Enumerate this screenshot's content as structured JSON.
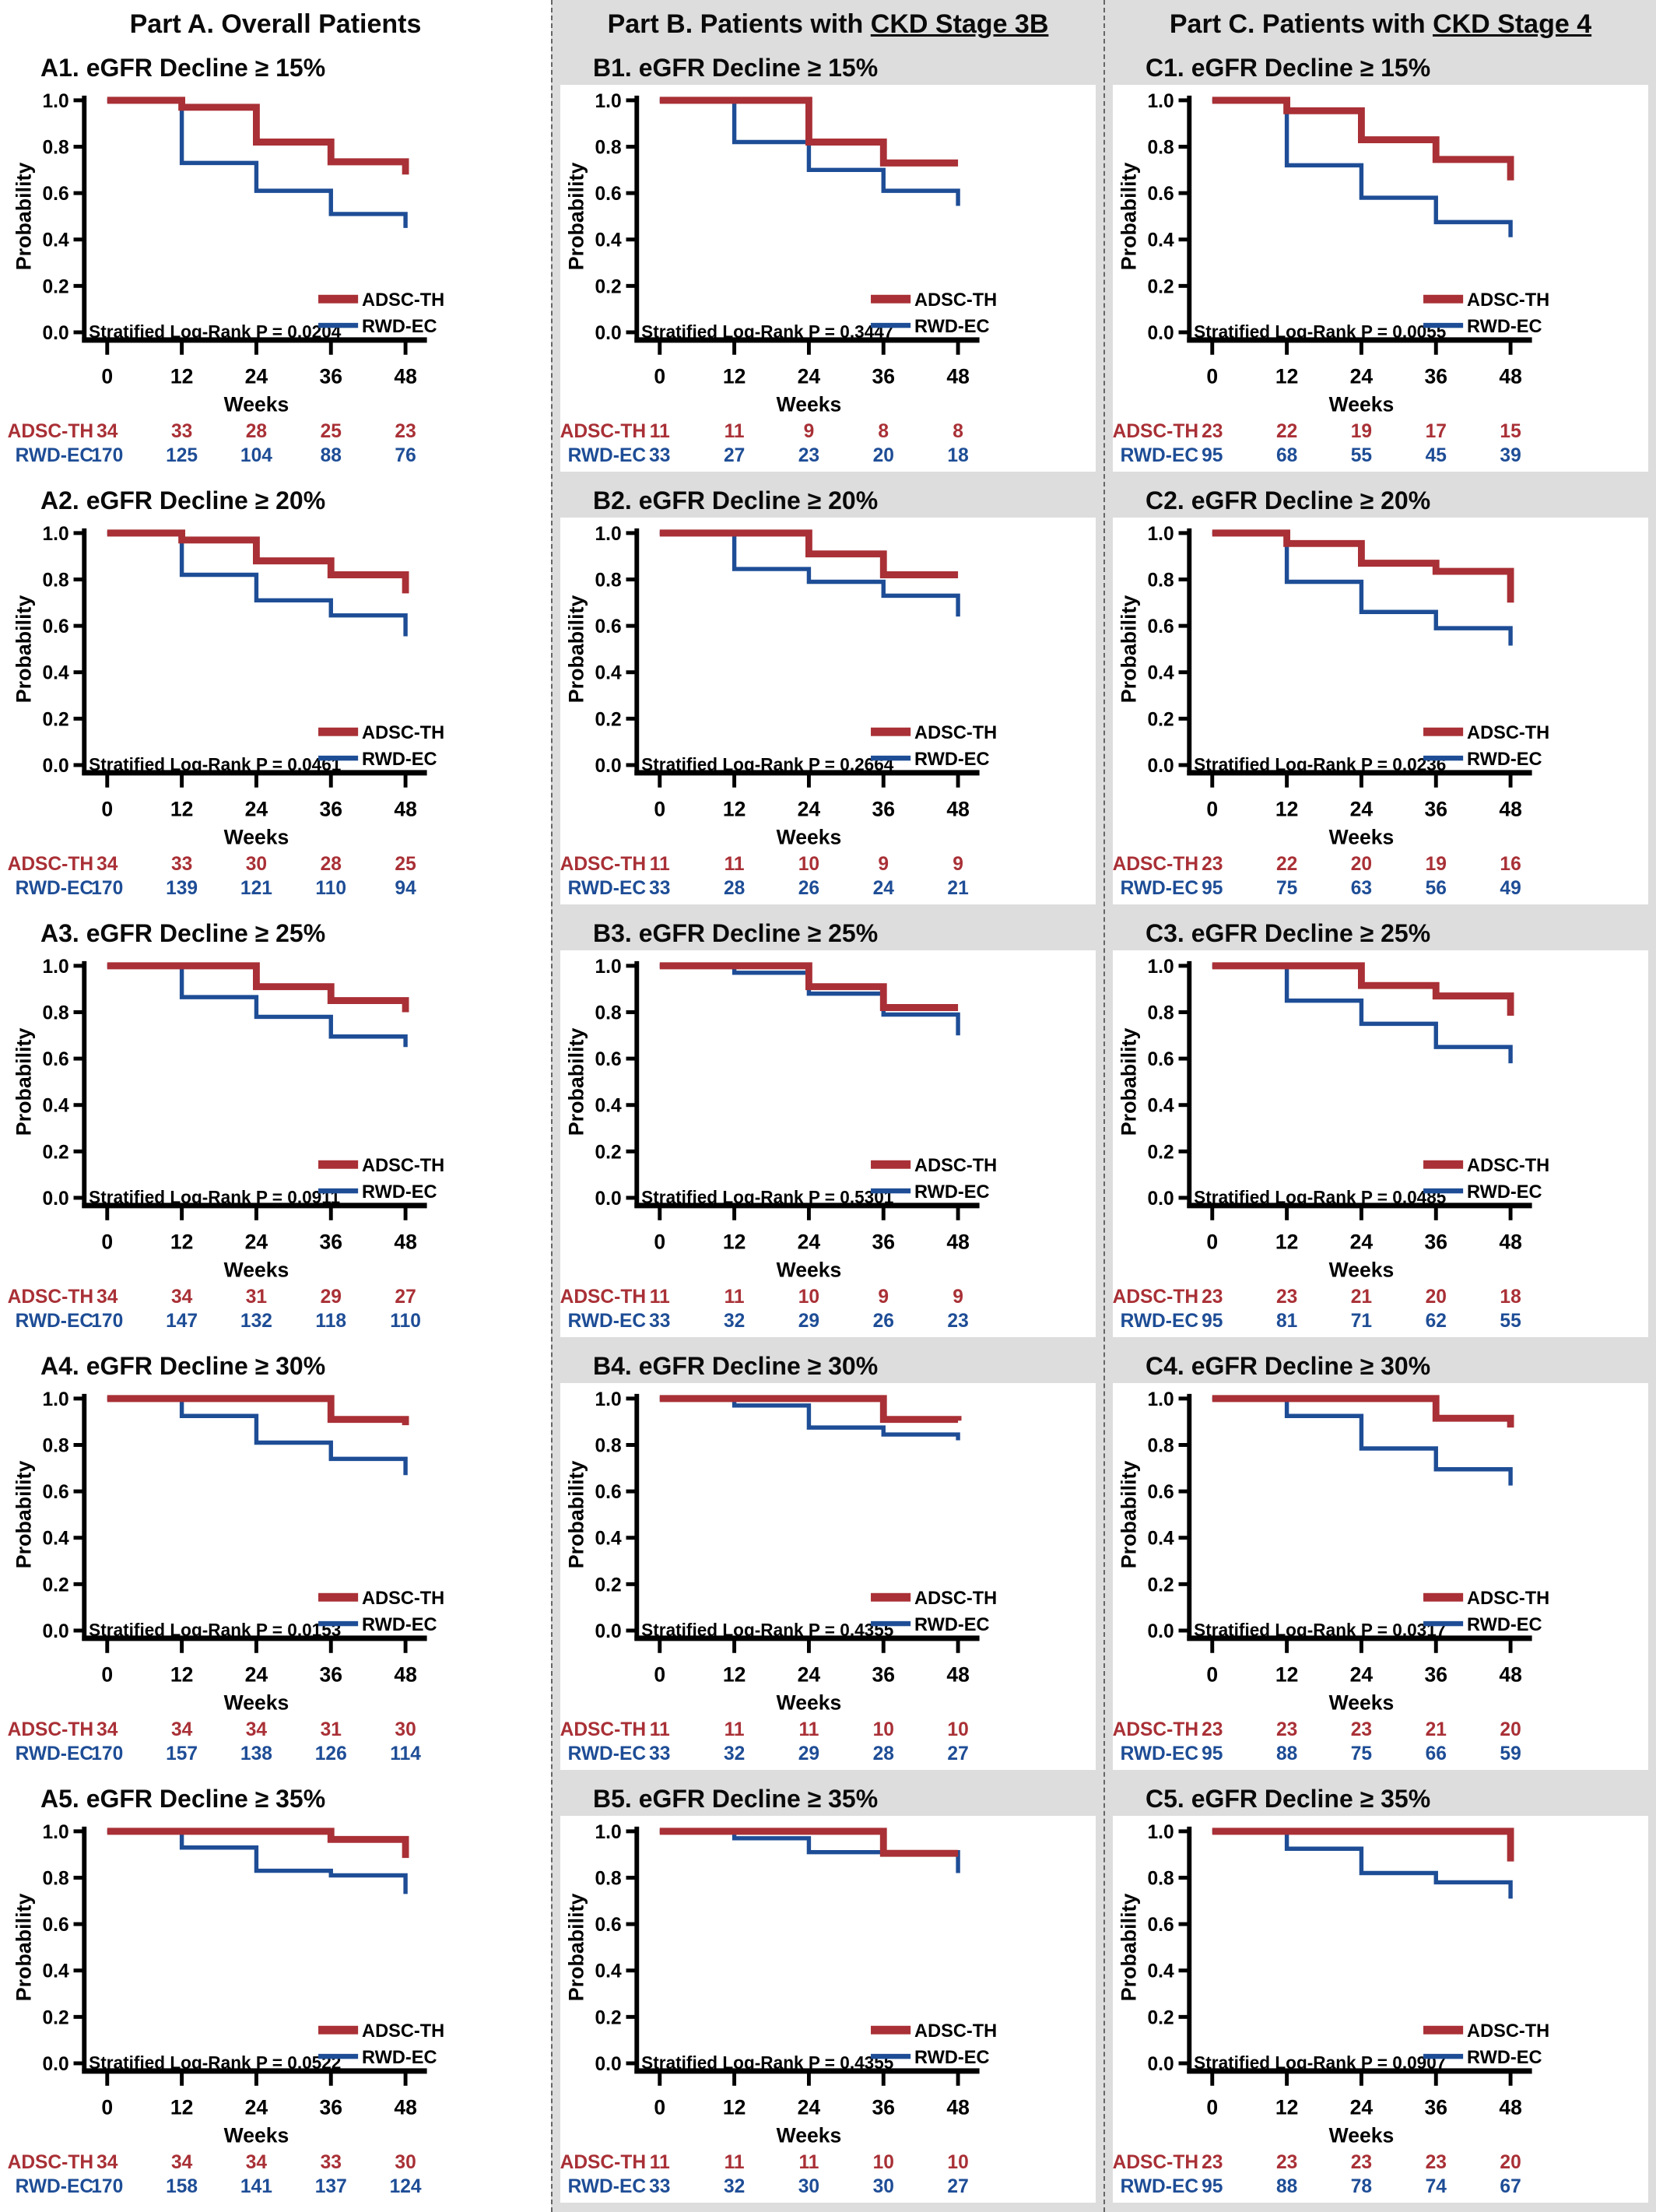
{
  "figure": {
    "colors": {
      "adsc_th": "#A93036",
      "rwd_ec": "#1E4D96",
      "column_bg": "#DDDDDD",
      "panel_bg": "#FFFFFF",
      "axis": "#000000"
    },
    "columns": [
      {
        "id": "A",
        "header_prefix": "Part A. Overall Patients",
        "header_underline": "",
        "panel_ids": [
          "A1",
          "A2",
          "A3",
          "A4",
          "A5"
        ]
      },
      {
        "id": "B",
        "header_prefix": "Part B. Patients with ",
        "header_underline": "CKD Stage 3B",
        "panel_ids": [
          "B1",
          "B2",
          "B3",
          "B4",
          "B5"
        ]
      },
      {
        "id": "C",
        "header_prefix": "Part C. Patients with ",
        "header_underline": "CKD Stage 4",
        "panel_ids": [
          "C1",
          "C2",
          "C3",
          "C4",
          "C5"
        ]
      }
    ]
  },
  "chart_data": [
    {
      "id": "A1",
      "type": "line",
      "km_step": true,
      "title": "A1. eGFR Decline ≥ 15%",
      "xlabel": "Weeks",
      "ylabel": "Probability",
      "ylim": [
        0,
        1
      ],
      "grid": false,
      "legend_position": "bottom-right",
      "x": [
        0,
        12,
        24,
        36,
        48
      ],
      "yticks": [
        "1.0",
        "0.8",
        "0.6",
        "0.4",
        "0.2",
        "0.0"
      ],
      "annotation": "Stratified Log-Rank P = 0.0204",
      "series": [
        {
          "name": "ADSC-TH",
          "color": "#A93036",
          "values": [
            1.0,
            0.97,
            0.82,
            0.735,
            0.68
          ],
          "at_risk": [
            34,
            33,
            28,
            25,
            23
          ]
        },
        {
          "name": "RWD-EC",
          "color": "#1E4D96",
          "values": [
            1.0,
            0.73,
            0.61,
            0.51,
            0.45
          ],
          "at_risk": [
            170,
            125,
            104,
            88,
            76
          ]
        }
      ]
    },
    {
      "id": "A2",
      "type": "line",
      "km_step": true,
      "title": "A2. eGFR Decline ≥ 20%",
      "xlabel": "Weeks",
      "ylabel": "Probability",
      "ylim": [
        0,
        1
      ],
      "grid": false,
      "legend_position": "bottom-right",
      "x": [
        0,
        12,
        24,
        36,
        48
      ],
      "yticks": [
        "1.0",
        "0.8",
        "0.6",
        "0.4",
        "0.2",
        "0.0"
      ],
      "annotation": "Stratified Log-Rank P = 0.0461",
      "series": [
        {
          "name": "ADSC-TH",
          "color": "#A93036",
          "values": [
            1.0,
            0.97,
            0.88,
            0.82,
            0.74
          ],
          "at_risk": [
            34,
            33,
            30,
            28,
            25
          ]
        },
        {
          "name": "RWD-EC",
          "color": "#1E4D96",
          "values": [
            1.0,
            0.82,
            0.71,
            0.645,
            0.555
          ],
          "at_risk": [
            170,
            139,
            121,
            110,
            94
          ]
        }
      ]
    },
    {
      "id": "A3",
      "type": "line",
      "km_step": true,
      "title": "A3. eGFR Decline ≥ 25%",
      "xlabel": "Weeks",
      "ylabel": "Probability",
      "ylim": [
        0,
        1
      ],
      "grid": false,
      "legend_position": "bottom-right",
      "x": [
        0,
        12,
        24,
        36,
        48
      ],
      "yticks": [
        "1.0",
        "0.8",
        "0.6",
        "0.4",
        "0.2",
        "0.0"
      ],
      "annotation": "Stratified Log-Rank P = 0.0911",
      "series": [
        {
          "name": "ADSC-TH",
          "color": "#A93036",
          "values": [
            1.0,
            1.0,
            0.91,
            0.85,
            0.8
          ],
          "at_risk": [
            34,
            34,
            31,
            29,
            27
          ]
        },
        {
          "name": "RWD-EC",
          "color": "#1E4D96",
          "values": [
            1.0,
            0.865,
            0.78,
            0.695,
            0.65
          ],
          "at_risk": [
            170,
            147,
            132,
            118,
            110
          ]
        }
      ]
    },
    {
      "id": "A4",
      "type": "line",
      "km_step": true,
      "title": "A4. eGFR Decline ≥ 30%",
      "xlabel": "Weeks",
      "ylabel": "Probability",
      "ylim": [
        0,
        1
      ],
      "grid": false,
      "legend_position": "bottom-right",
      "x": [
        0,
        12,
        24,
        36,
        48
      ],
      "yticks": [
        "1.0",
        "0.8",
        "0.6",
        "0.4",
        "0.2",
        "0.0"
      ],
      "annotation": "Stratified Log-Rank P = 0.0153",
      "series": [
        {
          "name": "ADSC-TH",
          "color": "#A93036",
          "values": [
            1.0,
            1.0,
            1.0,
            0.91,
            0.885
          ],
          "at_risk": [
            34,
            34,
            34,
            31,
            30
          ]
        },
        {
          "name": "RWD-EC",
          "color": "#1E4D96",
          "values": [
            1.0,
            0.925,
            0.81,
            0.74,
            0.67
          ],
          "at_risk": [
            170,
            157,
            138,
            126,
            114
          ]
        }
      ]
    },
    {
      "id": "A5",
      "type": "line",
      "km_step": true,
      "title": "A5. eGFR Decline ≥ 35%",
      "xlabel": "Weeks",
      "ylabel": "Probability",
      "ylim": [
        0,
        1
      ],
      "grid": false,
      "legend_position": "bottom-right",
      "x": [
        0,
        12,
        24,
        36,
        48
      ],
      "yticks": [
        "1.0",
        "0.8",
        "0.6",
        "0.4",
        "0.2",
        "0.0"
      ],
      "annotation": "Stratified Log-Rank P = 0.0522",
      "series": [
        {
          "name": "ADSC-TH",
          "color": "#A93036",
          "values": [
            1.0,
            1.0,
            1.0,
            0.965,
            0.885
          ],
          "at_risk": [
            34,
            34,
            34,
            33,
            30
          ]
        },
        {
          "name": "RWD-EC",
          "color": "#1E4D96",
          "values": [
            1.0,
            0.93,
            0.83,
            0.81,
            0.73
          ],
          "at_risk": [
            170,
            158,
            141,
            137,
            124
          ]
        }
      ]
    },
    {
      "id": "B1",
      "type": "line",
      "km_step": true,
      "title": "B1. eGFR Decline ≥ 15%",
      "xlabel": "Weeks",
      "ylabel": "Probability",
      "ylim": [
        0,
        1
      ],
      "grid": false,
      "legend_position": "bottom-right",
      "x": [
        0,
        12,
        24,
        36,
        48
      ],
      "yticks": [
        "1.0",
        "0.8",
        "0.6",
        "0.4",
        "0.2",
        "0.0"
      ],
      "annotation": "Stratified Log-Rank P = 0.3447",
      "series": [
        {
          "name": "ADSC-TH",
          "color": "#A93036",
          "values": [
            1.0,
            1.0,
            0.82,
            0.73,
            0.73
          ],
          "at_risk": [
            11,
            11,
            9,
            8,
            8
          ]
        },
        {
          "name": "RWD-EC",
          "color": "#1E4D96",
          "values": [
            1.0,
            0.82,
            0.7,
            0.61,
            0.545
          ],
          "at_risk": [
            33,
            27,
            23,
            20,
            18
          ]
        }
      ]
    },
    {
      "id": "B2",
      "type": "line",
      "km_step": true,
      "title": "B2. eGFR Decline ≥ 20%",
      "xlabel": "Weeks",
      "ylabel": "Probability",
      "ylim": [
        0,
        1
      ],
      "grid": false,
      "legend_position": "bottom-right",
      "x": [
        0,
        12,
        24,
        36,
        48
      ],
      "yticks": [
        "1.0",
        "0.8",
        "0.6",
        "0.4",
        "0.2",
        "0.0"
      ],
      "annotation": "Stratified Log-Rank P = 0.2664",
      "series": [
        {
          "name": "ADSC-TH",
          "color": "#A93036",
          "values": [
            1.0,
            1.0,
            0.91,
            0.82,
            0.82
          ],
          "at_risk": [
            11,
            11,
            10,
            9,
            9
          ]
        },
        {
          "name": "RWD-EC",
          "color": "#1E4D96",
          "values": [
            1.0,
            0.845,
            0.79,
            0.73,
            0.64
          ],
          "at_risk": [
            33,
            28,
            26,
            24,
            21
          ]
        }
      ]
    },
    {
      "id": "B3",
      "type": "line",
      "km_step": true,
      "title": "B3. eGFR Decline ≥ 25%",
      "xlabel": "Weeks",
      "ylabel": "Probability",
      "ylim": [
        0,
        1
      ],
      "grid": false,
      "legend_position": "bottom-right",
      "x": [
        0,
        12,
        24,
        36,
        48
      ],
      "yticks": [
        "1.0",
        "0.8",
        "0.6",
        "0.4",
        "0.2",
        "0.0"
      ],
      "annotation": "Stratified Log-Rank P = 0.5301",
      "series": [
        {
          "name": "ADSC-TH",
          "color": "#A93036",
          "values": [
            1.0,
            1.0,
            0.91,
            0.82,
            0.82
          ],
          "at_risk": [
            11,
            11,
            10,
            9,
            9
          ]
        },
        {
          "name": "RWD-EC",
          "color": "#1E4D96",
          "values": [
            1.0,
            0.97,
            0.88,
            0.79,
            0.7
          ],
          "at_risk": [
            33,
            32,
            29,
            26,
            23
          ]
        }
      ]
    },
    {
      "id": "B4",
      "type": "line",
      "km_step": true,
      "title": "B4. eGFR Decline ≥ 30%",
      "xlabel": "Weeks",
      "ylabel": "Probability",
      "ylim": [
        0,
        1
      ],
      "grid": false,
      "legend_position": "bottom-right",
      "x": [
        0,
        12,
        24,
        36,
        48
      ],
      "yticks": [
        "1.0",
        "0.8",
        "0.6",
        "0.4",
        "0.2",
        "0.0"
      ],
      "annotation": "Stratified Log-Rank P = 0.4355",
      "series": [
        {
          "name": "ADSC-TH",
          "color": "#A93036",
          "values": [
            1.0,
            1.0,
            1.0,
            0.91,
            0.905
          ],
          "at_risk": [
            11,
            11,
            11,
            10,
            10
          ]
        },
        {
          "name": "RWD-EC",
          "color": "#1E4D96",
          "values": [
            1.0,
            0.97,
            0.875,
            0.845,
            0.82
          ],
          "at_risk": [
            33,
            32,
            29,
            28,
            27
          ]
        }
      ]
    },
    {
      "id": "B5",
      "type": "line",
      "km_step": true,
      "title": "B5. eGFR Decline ≥ 35%",
      "xlabel": "Weeks",
      "ylabel": "Probability",
      "ylim": [
        0,
        1
      ],
      "grid": false,
      "legend_position": "bottom-right",
      "x": [
        0,
        12,
        24,
        36,
        48
      ],
      "yticks": [
        "1.0",
        "0.8",
        "0.6",
        "0.4",
        "0.2",
        "0.0"
      ],
      "annotation": "Stratified Log-Rank P = 0.4355",
      "series": [
        {
          "name": "ADSC-TH",
          "color": "#A93036",
          "values": [
            1.0,
            1.0,
            1.0,
            0.905,
            0.905
          ],
          "at_risk": [
            11,
            11,
            11,
            10,
            10
          ]
        },
        {
          "name": "RWD-EC",
          "color": "#1E4D96",
          "values": [
            1.0,
            0.97,
            0.91,
            0.91,
            0.82
          ],
          "at_risk": [
            33,
            32,
            30,
            30,
            27
          ]
        }
      ]
    },
    {
      "id": "C1",
      "type": "line",
      "km_step": true,
      "title": "C1. eGFR Decline ≥ 15%",
      "xlabel": "Weeks",
      "ylabel": "Probability",
      "ylim": [
        0,
        1
      ],
      "grid": false,
      "legend_position": "bottom-right",
      "x": [
        0,
        12,
        24,
        36,
        48
      ],
      "yticks": [
        "1.0",
        "0.8",
        "0.6",
        "0.4",
        "0.2",
        "0.0"
      ],
      "annotation": "Stratified Log-Rank P = 0.0055",
      "series": [
        {
          "name": "ADSC-TH",
          "color": "#A93036",
          "values": [
            1.0,
            0.955,
            0.83,
            0.745,
            0.655
          ],
          "at_risk": [
            23,
            22,
            19,
            17,
            15
          ]
        },
        {
          "name": "RWD-EC",
          "color": "#1E4D96",
          "values": [
            1.0,
            0.72,
            0.58,
            0.475,
            0.41
          ],
          "at_risk": [
            95,
            68,
            55,
            45,
            39
          ]
        }
      ]
    },
    {
      "id": "C2",
      "type": "line",
      "km_step": true,
      "title": "C2. eGFR Decline ≥ 20%",
      "xlabel": "Weeks",
      "ylabel": "Probability",
      "ylim": [
        0,
        1
      ],
      "grid": false,
      "legend_position": "bottom-right",
      "x": [
        0,
        12,
        24,
        36,
        48
      ],
      "yticks": [
        "1.0",
        "0.8",
        "0.6",
        "0.4",
        "0.2",
        "0.0"
      ],
      "annotation": "Stratified Log-Rank P = 0.0236",
      "series": [
        {
          "name": "ADSC-TH",
          "color": "#A93036",
          "values": [
            1.0,
            0.955,
            0.87,
            0.835,
            0.7
          ],
          "at_risk": [
            23,
            22,
            20,
            19,
            16
          ]
        },
        {
          "name": "RWD-EC",
          "color": "#1E4D96",
          "values": [
            1.0,
            0.79,
            0.66,
            0.59,
            0.515
          ],
          "at_risk": [
            95,
            75,
            63,
            56,
            49
          ]
        }
      ]
    },
    {
      "id": "C3",
      "type": "line",
      "km_step": true,
      "title": "C3. eGFR Decline ≥ 25%",
      "xlabel": "Weeks",
      "ylabel": "Probability",
      "ylim": [
        0,
        1
      ],
      "grid": false,
      "legend_position": "bottom-right",
      "x": [
        0,
        12,
        24,
        36,
        48
      ],
      "yticks": [
        "1.0",
        "0.8",
        "0.6",
        "0.4",
        "0.2",
        "0.0"
      ],
      "annotation": "Stratified Log-Rank P = 0.0485",
      "series": [
        {
          "name": "ADSC-TH",
          "color": "#A93036",
          "values": [
            1.0,
            1.0,
            0.915,
            0.87,
            0.785
          ],
          "at_risk": [
            23,
            23,
            21,
            20,
            18
          ]
        },
        {
          "name": "RWD-EC",
          "color": "#1E4D96",
          "values": [
            1.0,
            0.85,
            0.75,
            0.65,
            0.58
          ],
          "at_risk": [
            95,
            81,
            71,
            62,
            55
          ]
        }
      ]
    },
    {
      "id": "C4",
      "type": "line",
      "km_step": true,
      "title": "C4. eGFR Decline ≥ 30%",
      "xlabel": "Weeks",
      "ylabel": "Probability",
      "ylim": [
        0,
        1
      ],
      "grid": false,
      "legend_position": "bottom-right",
      "x": [
        0,
        12,
        24,
        36,
        48
      ],
      "yticks": [
        "1.0",
        "0.8",
        "0.6",
        "0.4",
        "0.2",
        "0.0"
      ],
      "annotation": "Stratified Log-Rank P = 0.0317",
      "series": [
        {
          "name": "ADSC-TH",
          "color": "#A93036",
          "values": [
            1.0,
            1.0,
            1.0,
            0.915,
            0.875
          ],
          "at_risk": [
            23,
            23,
            23,
            21,
            20
          ]
        },
        {
          "name": "RWD-EC",
          "color": "#1E4D96",
          "values": [
            1.0,
            0.925,
            0.785,
            0.695,
            0.625
          ],
          "at_risk": [
            95,
            88,
            75,
            66,
            59
          ]
        }
      ]
    },
    {
      "id": "C5",
      "type": "line",
      "km_step": true,
      "title": "C5. eGFR Decline ≥ 35%",
      "xlabel": "Weeks",
      "ylabel": "Probability",
      "ylim": [
        0,
        1
      ],
      "grid": false,
      "legend_position": "bottom-right",
      "x": [
        0,
        12,
        24,
        36,
        48
      ],
      "yticks": [
        "1.0",
        "0.8",
        "0.6",
        "0.4",
        "0.2",
        "0.0"
      ],
      "annotation": "Stratified Log-Rank P = 0.0907",
      "series": [
        {
          "name": "ADSC-TH",
          "color": "#A93036",
          "values": [
            1.0,
            1.0,
            1.0,
            1.0,
            0.87
          ],
          "at_risk": [
            23,
            23,
            23,
            23,
            20
          ]
        },
        {
          "name": "RWD-EC",
          "color": "#1E4D96",
          "values": [
            1.0,
            0.925,
            0.82,
            0.78,
            0.71
          ],
          "at_risk": [
            95,
            88,
            78,
            74,
            67
          ]
        }
      ]
    }
  ]
}
